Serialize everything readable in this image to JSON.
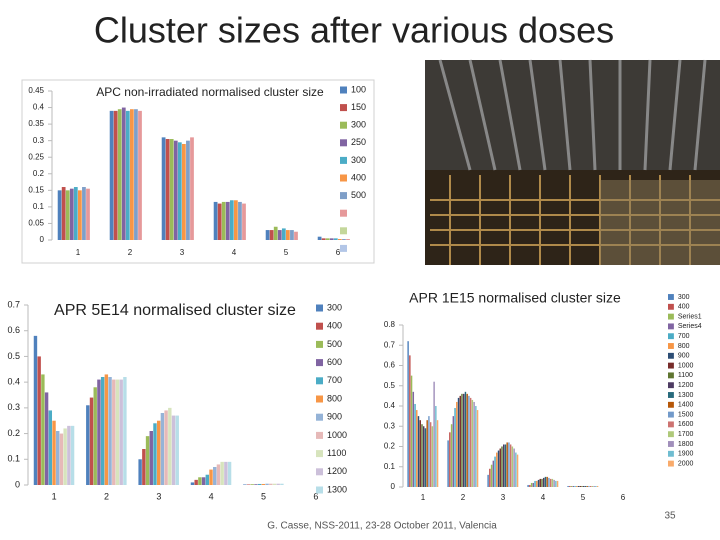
{
  "slide": {
    "title": "Cluster sizes after various doses",
    "footer": "G. Casse, NSS-2011, 23-28 October 2011, Valencia",
    "page_number": "35"
  },
  "chart_data": [
    {
      "type": "bar",
      "title": "APC non-irradiated normalised cluster size",
      "categories": [
        "1",
        "2",
        "3",
        "4",
        "5",
        "6"
      ],
      "ylim": [
        0,
        0.45
      ],
      "yticks": [
        0,
        0.05,
        0.1,
        0.15,
        0.2,
        0.25,
        0.3,
        0.35,
        0.4,
        0.45
      ],
      "grid": false,
      "series": [
        {
          "name": "100",
          "color": "#4F81BD",
          "values": [
            0.15,
            0.39,
            0.31,
            0.115,
            0.03,
            0.01
          ]
        },
        {
          "name": "150",
          "color": "#C0504D",
          "values": [
            0.16,
            0.39,
            0.305,
            0.11,
            0.03,
            0.005
          ]
        },
        {
          "name": "300",
          "color": "#9BBB59",
          "values": [
            0.15,
            0.395,
            0.305,
            0.115,
            0.04,
            0.005
          ]
        },
        {
          "name": "250",
          "color": "#8064A2",
          "values": [
            0.155,
            0.4,
            0.3,
            0.115,
            0.03,
            0.005
          ]
        },
        {
          "name": "300",
          "color": "#4BACC6",
          "values": [
            0.16,
            0.39,
            0.295,
            0.12,
            0.035,
            0.005
          ]
        },
        {
          "name": "400",
          "color": "#F79646",
          "values": [
            0.15,
            0.395,
            0.29,
            0.12,
            0.03,
            0.003
          ]
        },
        {
          "name": "500",
          "color": "#7F9FC8",
          "values": [
            0.16,
            0.395,
            0.3,
            0.115,
            0.03,
            0.003
          ]
        },
        {
          "name": null,
          "color": "#E6999A",
          "values": [
            0.155,
            0.39,
            0.31,
            0.11,
            0.025,
            0.003
          ]
        },
        {
          "name": null,
          "color": "#C4D79B",
          "values": [
            null,
            null,
            null,
            null,
            null,
            null
          ]
        },
        {
          "name": null,
          "color": "#B3C6E7",
          "values": [
            null,
            null,
            null,
            null,
            null,
            null
          ]
        }
      ]
    },
    {
      "type": "bar",
      "title": "APR 5E14 normalised cluster size",
      "categories": [
        "1",
        "2",
        "3",
        "4",
        "5",
        "6"
      ],
      "ylim": [
        0,
        0.7
      ],
      "yticks": [
        0,
        0.1,
        0.2,
        0.3,
        0.4,
        0.5,
        0.6,
        0.7
      ],
      "grid": false,
      "series": [
        {
          "name": "300",
          "color": "#4F81BD",
          "values": [
            0.58,
            0.31,
            0.1,
            0.01,
            0.002,
            0
          ]
        },
        {
          "name": "400",
          "color": "#C0504D",
          "values": [
            0.5,
            0.34,
            0.14,
            0.02,
            0.002,
            0
          ]
        },
        {
          "name": "500",
          "color": "#9BBB59",
          "values": [
            0.43,
            0.38,
            0.19,
            0.03,
            0.003,
            0
          ]
        },
        {
          "name": "600",
          "color": "#8064A2",
          "values": [
            0.36,
            0.41,
            0.21,
            0.03,
            0.003,
            0
          ]
        },
        {
          "name": "700",
          "color": "#4BACC6",
          "values": [
            0.29,
            0.42,
            0.24,
            0.04,
            0.004,
            0
          ]
        },
        {
          "name": "800",
          "color": "#F79646",
          "values": [
            0.25,
            0.43,
            0.25,
            0.06,
            0.004,
            0
          ]
        },
        {
          "name": "900",
          "color": "#95B3D7",
          "values": [
            0.21,
            0.42,
            0.28,
            0.07,
            0.005,
            0
          ]
        },
        {
          "name": "1000",
          "color": "#E6B9B8",
          "values": [
            0.2,
            0.41,
            0.29,
            0.08,
            0.005,
            0
          ]
        },
        {
          "name": "1100",
          "color": "#D7E4BD",
          "values": [
            0.22,
            0.41,
            0.3,
            0.09,
            0.005,
            0
          ]
        },
        {
          "name": "1200",
          "color": "#CCC0DA",
          "values": [
            0.23,
            0.41,
            0.27,
            0.09,
            0.005,
            0
          ]
        },
        {
          "name": "1300",
          "color": "#B7DEE8",
          "values": [
            0.23,
            0.42,
            0.27,
            0.09,
            0.005,
            0
          ]
        }
      ]
    },
    {
      "type": "bar",
      "title": "APR 1E15 normalised cluster size",
      "categories": [
        "1",
        "2",
        "3",
        "4",
        "5",
        "6"
      ],
      "ylim": [
        0,
        0.8
      ],
      "yticks": [
        0,
        0.1,
        0.2,
        0.3,
        0.4,
        0.5,
        0.6,
        0.7,
        0.8
      ],
      "grid": false,
      "series": [
        {
          "name": "300",
          "color": "#4F81BD",
          "values": [
            0.72,
            0.23,
            0.06,
            0.01,
            0.005,
            0
          ]
        },
        {
          "name": "400",
          "color": "#C0504D",
          "values": [
            0.65,
            0.27,
            0.09,
            0.01,
            0.005,
            0
          ]
        },
        {
          "name": "Series1",
          "color": "#9BBB59",
          "values": [
            0.55,
            0.31,
            0.11,
            0.02,
            0.005,
            0
          ]
        },
        {
          "name": "Series4",
          "color": "#8064A2",
          "values": [
            0.47,
            0.35,
            0.13,
            0.02,
            0.005,
            0
          ]
        },
        {
          "name": "700",
          "color": "#4BACC6",
          "values": [
            0.41,
            0.39,
            0.15,
            0.03,
            0.005,
            0
          ]
        },
        {
          "name": "800",
          "color": "#F79646",
          "values": [
            0.38,
            0.42,
            0.17,
            0.03,
            0.005,
            0
          ]
        },
        {
          "name": "900",
          "color": "#2C4D75",
          "values": [
            0.35,
            0.44,
            0.18,
            0.035,
            0.005,
            0
          ]
        },
        {
          "name": "1000",
          "color": "#772C2A",
          "values": [
            0.33,
            0.45,
            0.19,
            0.04,
            0.005,
            0
          ]
        },
        {
          "name": "1100",
          "color": "#5F7530",
          "values": [
            0.31,
            0.46,
            0.2,
            0.04,
            0.005,
            0
          ]
        },
        {
          "name": "1200",
          "color": "#4D3B62",
          "values": [
            0.3,
            0.46,
            0.21,
            0.045,
            0.005,
            0
          ]
        },
        {
          "name": "1300",
          "color": "#276A7C",
          "values": [
            0.29,
            0.47,
            0.21,
            0.05,
            0.005,
            0
          ]
        },
        {
          "name": "1400",
          "color": "#B65708",
          "values": [
            0.33,
            0.46,
            0.22,
            0.05,
            0.005,
            0
          ]
        },
        {
          "name": "1500",
          "color": "#729ACA",
          "values": [
            0.35,
            0.45,
            0.22,
            0.045,
            0.005,
            0
          ]
        },
        {
          "name": "1600",
          "color": "#CD7371",
          "values": [
            0.32,
            0.44,
            0.21,
            0.04,
            0.005,
            0
          ]
        },
        {
          "name": "1700",
          "color": "#AFC97A",
          "values": [
            0.3,
            0.43,
            0.2,
            0.04,
            0.005,
            0
          ]
        },
        {
          "name": "1800",
          "color": "#A18FBB",
          "values": [
            0.52,
            0.42,
            0.19,
            0.035,
            0.005,
            0
          ]
        },
        {
          "name": "1900",
          "color": "#6FBDD1",
          "values": [
            0.4,
            0.4,
            0.17,
            0.03,
            0.005,
            0
          ]
        },
        {
          "name": "2000",
          "color": "#F9AB6B",
          "values": [
            0.33,
            0.38,
            0.16,
            0.03,
            0.005,
            0
          ]
        }
      ]
    }
  ]
}
